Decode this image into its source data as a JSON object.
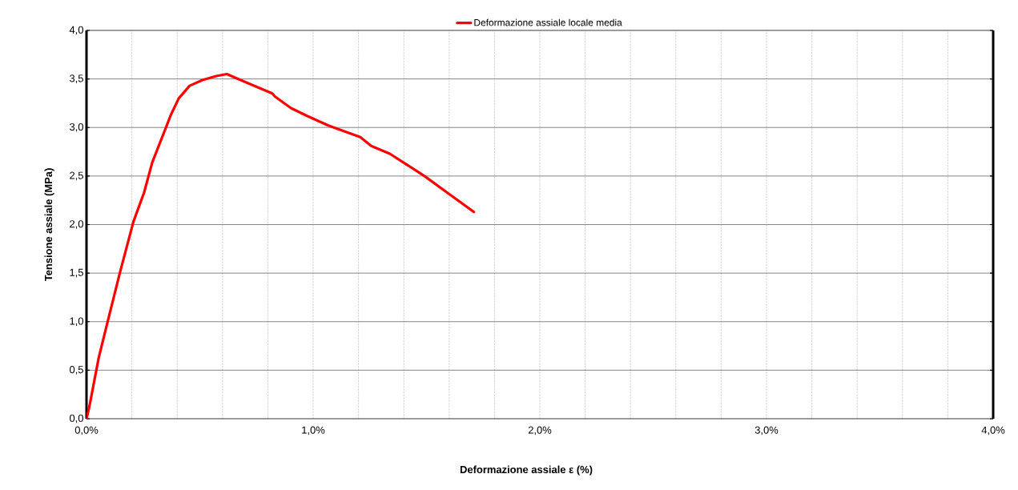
{
  "chart_data": {
    "type": "line",
    "xlabel": "Deformazione assiale ε (%)",
    "ylabel": "Tensione assiale (MPa)",
    "xlim": [
      0,
      4
    ],
    "ylim": [
      0,
      4
    ],
    "xticks": [
      {
        "value": 0,
        "label": "0,0%"
      },
      {
        "value": 0.2,
        "label": null
      },
      {
        "value": 0.4,
        "label": null
      },
      {
        "value": 0.6,
        "label": null
      },
      {
        "value": 0.8,
        "label": null
      },
      {
        "value": 1,
        "label": "1,0%"
      },
      {
        "value": 1.2,
        "label": null
      },
      {
        "value": 1.4,
        "label": null
      },
      {
        "value": 1.6,
        "label": null
      },
      {
        "value": 1.8,
        "label": null
      },
      {
        "value": 2,
        "label": "2,0%"
      },
      {
        "value": 2.2,
        "label": null
      },
      {
        "value": 2.4,
        "label": null
      },
      {
        "value": 2.6,
        "label": null
      },
      {
        "value": 2.8,
        "label": null
      },
      {
        "value": 3,
        "label": "3,0%"
      },
      {
        "value": 3.2,
        "label": null
      },
      {
        "value": 3.4,
        "label": null
      },
      {
        "value": 3.6,
        "label": null
      },
      {
        "value": 3.8,
        "label": null
      },
      {
        "value": 4,
        "label": "4,0%"
      }
    ],
    "yticks": [
      {
        "value": 0,
        "label": "0,0"
      },
      {
        "value": 0.5,
        "label": "0,5"
      },
      {
        "value": 1,
        "label": "1,0"
      },
      {
        "value": 1.5,
        "label": "1,5"
      },
      {
        "value": 2,
        "label": "2,0"
      },
      {
        "value": 2.5,
        "label": "2,5"
      },
      {
        "value": 3,
        "label": "3,0"
      },
      {
        "value": 3.5,
        "label": "3,5"
      },
      {
        "value": 4,
        "label": "4,0"
      }
    ],
    "grid": true,
    "legend": "top",
    "marker": "none",
    "line_style": "solid",
    "series": [
      {
        "name": "Deformazione assiale locale media",
        "color": "#ff0000",
        "x": [
          0,
          0.013,
          0.054,
          0.089,
          0.148,
          0.207,
          0.254,
          0.29,
          0.349,
          0.372,
          0.407,
          0.455,
          0.513,
          0.572,
          0.619,
          0.678,
          0.749,
          0.82,
          0.831,
          0.902,
          0.973,
          1.067,
          1.208,
          1.256,
          1.338,
          1.491,
          1.597,
          1.709
        ],
        "values": [
          0,
          0.13,
          0.63,
          0.96,
          1.51,
          2.03,
          2.33,
          2.64,
          2.99,
          3.13,
          3.3,
          3.43,
          3.49,
          3.53,
          3.55,
          3.49,
          3.42,
          3.35,
          3.32,
          3.2,
          3.12,
          3.02,
          2.9,
          2.81,
          2.73,
          2.5,
          2.32,
          2.13
        ]
      }
    ]
  }
}
